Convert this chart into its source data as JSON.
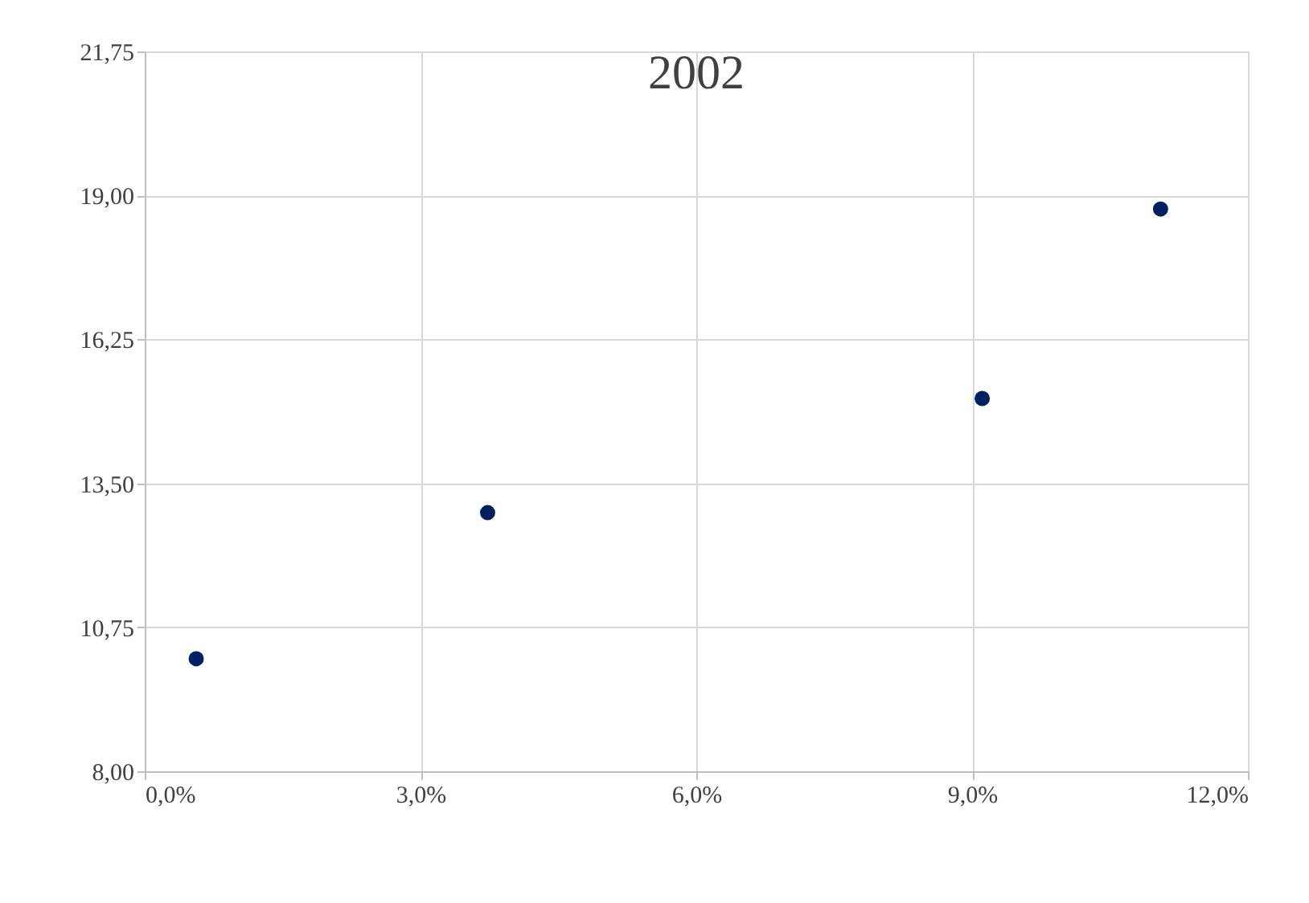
{
  "chart_data": {
    "type": "scatter",
    "title": "2002",
    "x": [
      0.56,
      3.73,
      9.11,
      11.05
    ],
    "series": [
      {
        "color": "#002060",
        "values": [
          10.15,
          12.94,
          15.12,
          18.74
        ]
      }
    ],
    "xlim": [
      0,
      12
    ],
    "xticks": [
      {
        "value": 0,
        "label": "0,0%"
      },
      {
        "value": 3,
        "label": "3,0%"
      },
      {
        "value": 6,
        "label": "6,0%"
      },
      {
        "value": 9,
        "label": "9,0%"
      },
      {
        "value": 12,
        "label": "12,0%"
      }
    ],
    "ylim": [
      8,
      21.75
    ],
    "yticks": [
      {
        "value": 8,
        "label": "8,00"
      },
      {
        "value": 10.75,
        "label": "10,75"
      },
      {
        "value": 13.5,
        "label": "13,50"
      },
      {
        "value": 16.25,
        "label": "16,25"
      },
      {
        "value": 19,
        "label": "19,00"
      },
      {
        "value": 21.75,
        "label": "21,75"
      }
    ],
    "grid": true,
    "marker": "circle"
  }
}
